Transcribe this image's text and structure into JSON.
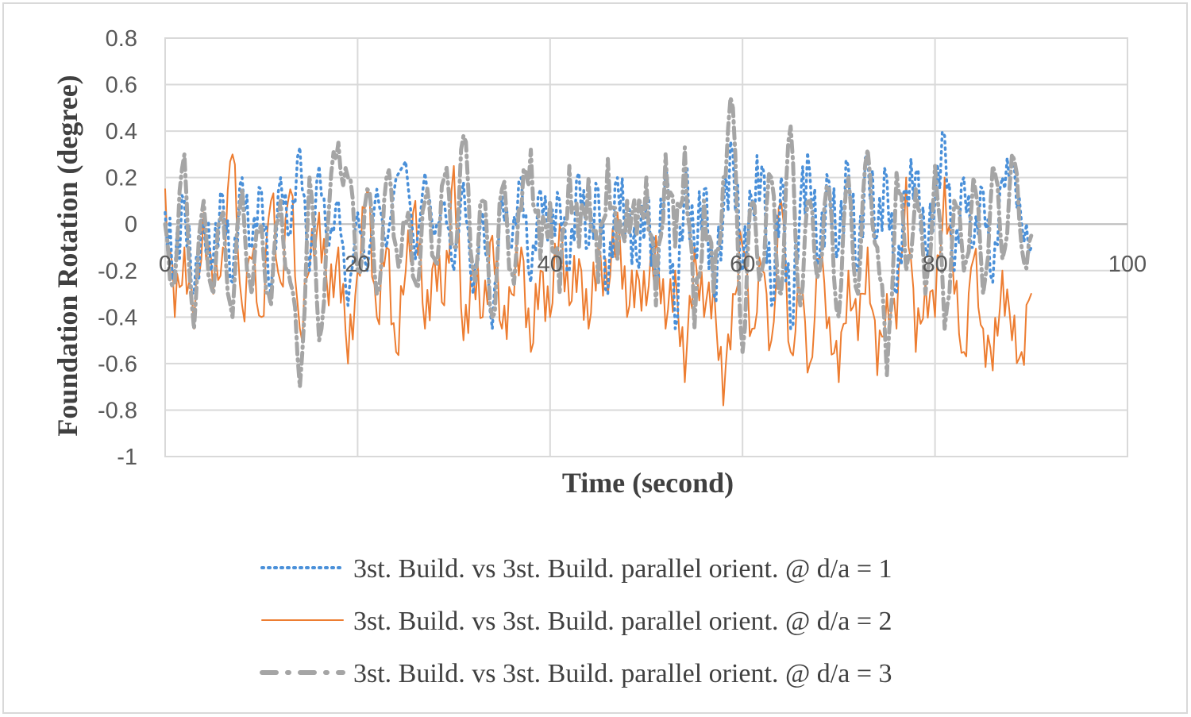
{
  "chart_data": {
    "type": "line",
    "xlabel": "Time (second)",
    "ylabel": "Foundation Rotation (degree)",
    "xlim": [
      0,
      100
    ],
    "ylim": [
      -1,
      0.8
    ],
    "grid": true,
    "legend_position": "bottom",
    "x_ticks": [
      "0",
      "20",
      "40",
      "60",
      "80",
      "100"
    ],
    "y_ticks": [
      "0.8",
      "0.6",
      "0.4",
      "0.2",
      "0",
      "-0.2",
      "-0.4",
      "-0.6",
      "-0.8",
      "-1"
    ],
    "x_start": 0,
    "x_step": 1,
    "series": [
      {
        "name": "3st. Build. vs 3st. Build. parallel orient. @ d/a = 1",
        "color": "#4a90d9",
        "style": "dotted",
        "values": [
          0.05,
          -0.2,
          0.1,
          -0.3,
          0.0,
          -0.15,
          0.12,
          -0.25,
          0.2,
          -0.1,
          0.15,
          -0.3,
          0.2,
          -0.05,
          0.33,
          -0.2,
          0.25,
          -0.1,
          0.1,
          -0.35,
          0.05,
          -0.2,
          0.15,
          -0.1,
          0.2,
          0.27,
          -0.15,
          0.22,
          -0.05,
          0.1,
          -0.2,
          0.18,
          -0.3,
          0.05,
          -0.45,
          0.12,
          -0.1,
          0.2,
          -0.25,
          0.15,
          -0.05,
          0.1,
          -0.2,
          0.22,
          -0.1,
          0.15,
          -0.3,
          0.2,
          0.0,
          -0.15,
          0.1,
          -0.25,
          0.25,
          -0.45,
          0.2,
          -0.1,
          0.15,
          -0.3,
          0.05,
          0.3,
          -0.2,
          0.1,
          0.25,
          -0.35,
          0.2,
          -0.45,
          0.1,
          0.22,
          -0.15,
          0.18,
          -0.1,
          0.25,
          -0.2,
          0.3,
          -0.05,
          0.2,
          -0.3,
          0.15,
          0.22,
          -0.1,
          0.1,
          0.38,
          -0.2,
          0.2,
          -0.1,
          0.15,
          -0.25,
          0.2,
          0.25,
          0.0,
          -0.1
        ]
      },
      {
        "name": "3st. Build. vs 3st. Build. parallel orient. @ d/a = 2",
        "color": "#ed7d31",
        "style": "solid",
        "values": [
          0.15,
          -0.4,
          -0.1,
          -0.45,
          0.05,
          -0.3,
          -0.1,
          0.3,
          -0.35,
          -0.15,
          -0.4,
          0.1,
          -0.25,
          0.15,
          -0.45,
          -0.2,
          0.05,
          -0.35,
          -0.1,
          -0.6,
          -0.2,
          0.15,
          -0.4,
          -0.1,
          -0.55,
          -0.2,
          0.1,
          -0.45,
          -0.15,
          -0.35,
          0.25,
          -0.5,
          -0.2,
          -0.4,
          -0.05,
          -0.45,
          -0.3,
          -0.1,
          -0.55,
          -0.2,
          -0.4,
          0.0,
          -0.35,
          -0.15,
          -0.45,
          -0.1,
          -0.3,
          0.05,
          -0.4,
          -0.2,
          -0.35,
          -0.05,
          -0.45,
          -0.2,
          -0.68,
          -0.1,
          -0.4,
          -0.25,
          -0.78,
          -0.3,
          -0.1,
          -0.45,
          -0.2,
          -0.5,
          0.1,
          -0.55,
          -0.3,
          -0.6,
          -0.15,
          -0.4,
          -0.68,
          -0.2,
          -0.5,
          -0.1,
          -0.65,
          -0.3,
          -0.45,
          0.2,
          -0.55,
          -0.25,
          -0.4,
          0.2,
          -0.3,
          -0.55,
          -0.15,
          -0.45,
          -0.63,
          -0.2,
          -0.5,
          -0.55,
          -0.3
        ]
      },
      {
        "name": "3st. Build. vs 3st. Build. parallel orient. @ d/a = 3",
        "color": "#a5a5a5",
        "style": "dash-dot",
        "values": [
          0.0,
          -0.25,
          0.3,
          -0.45,
          0.1,
          -0.3,
          0.05,
          -0.4,
          0.15,
          -0.3,
          0.0,
          -0.35,
          0.1,
          -0.25,
          -0.7,
          0.2,
          -0.5,
          0.05,
          0.35,
          0.2,
          -0.2,
          0.15,
          -0.3,
          0.2,
          -0.1,
          0.0,
          -0.25,
          0.1,
          -0.15,
          0.2,
          -0.1,
          0.38,
          -0.2,
          0.1,
          -0.4,
          0.15,
          -0.2,
          0.05,
          0.32,
          -0.15,
          0.1,
          -0.3,
          0.25,
          -0.1,
          0.2,
          -0.25,
          0.28,
          -0.15,
          0.1,
          -0.05,
          0.2,
          -0.35,
          0.3,
          -0.1,
          0.33,
          -0.45,
          0.1,
          -0.3,
          0.2,
          0.5,
          -0.55,
          0.1,
          -0.2,
          0.2,
          -0.3,
          0.42,
          -0.35,
          0.1,
          -0.2,
          0.15,
          -0.4,
          0.2,
          -0.3,
          0.32,
          -0.1,
          -0.65,
          0.22,
          -0.2,
          0.15,
          -0.3,
          0.25,
          -0.45,
          0.1,
          -0.2,
          0.2,
          -0.3,
          0.25,
          -0.15,
          0.3,
          -0.1,
          -0.05
        ]
      }
    ]
  }
}
